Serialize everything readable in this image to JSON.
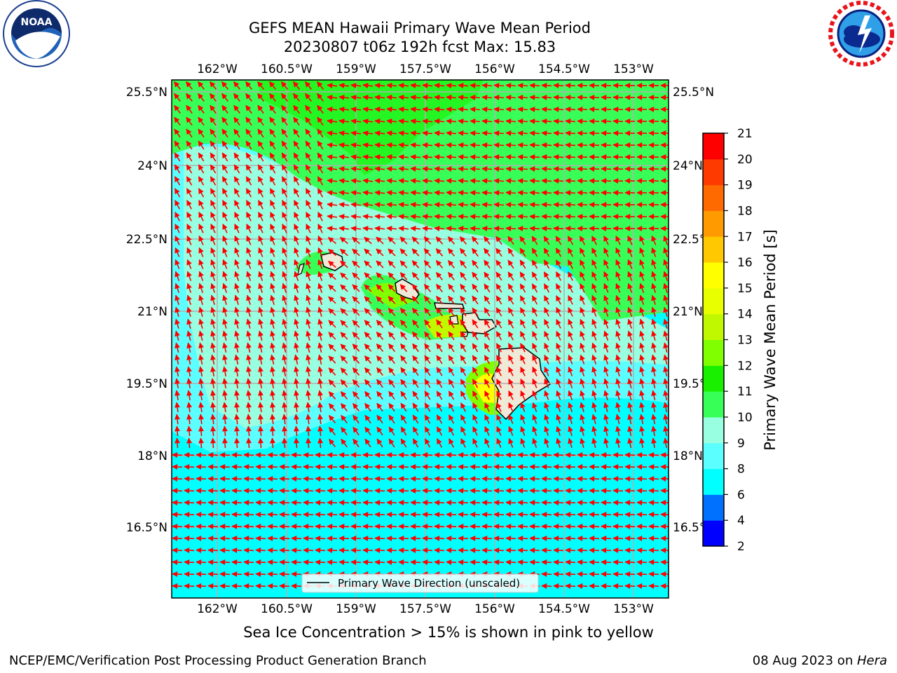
{
  "title": {
    "line1": "GEFS MEAN Hawaii Primary Wave Mean Period",
    "line2": "20230807 t06z 192h fcst   Max: 15.83"
  },
  "logos": {
    "left": "NOAA",
    "right": "NATIONAL WEATHER SERVICE"
  },
  "map": {
    "lon_labels": [
      "162°W",
      "160.5°W",
      "159°W",
      "157.5°W",
      "156°W",
      "154.5°W",
      "153°W"
    ],
    "lat_labels": [
      "25.5°N",
      "24°N",
      "22.5°N",
      "21°N",
      "19.5°N",
      "18°N",
      "16.5°N"
    ],
    "legend_label": "Primary Wave Direction (unscaled)",
    "vector_color": "#ff0000",
    "land_color": "#efe9d8",
    "grid": true
  },
  "colorbar": {
    "label": "Primary Wave Mean Period [s]",
    "ticks": [
      "2",
      "4",
      "6",
      "8",
      "9",
      "10",
      "11",
      "12",
      "13",
      "14",
      "15",
      "16",
      "17",
      "18",
      "19",
      "20",
      "21"
    ],
    "colors": [
      "#0000ff",
      "#0070ff",
      "#00ffff",
      "#5cffff",
      "#98ffe0",
      "#38ff58",
      "#18f000",
      "#80ff00",
      "#c0f800",
      "#e8ff00",
      "#ffff00",
      "#ffc800",
      "#ff9a00",
      "#ff6a00",
      "#ff3a00",
      "#ff0000"
    ]
  },
  "footer": {
    "sea_ice_note": "Sea Ice Concentration > 15% is shown in pink to yellow",
    "credit": "NCEP/EMC/Verification Post Processing Product Generation Branch",
    "date_prefix": "08 Aug 2023 on ",
    "machine": "Hera"
  }
}
